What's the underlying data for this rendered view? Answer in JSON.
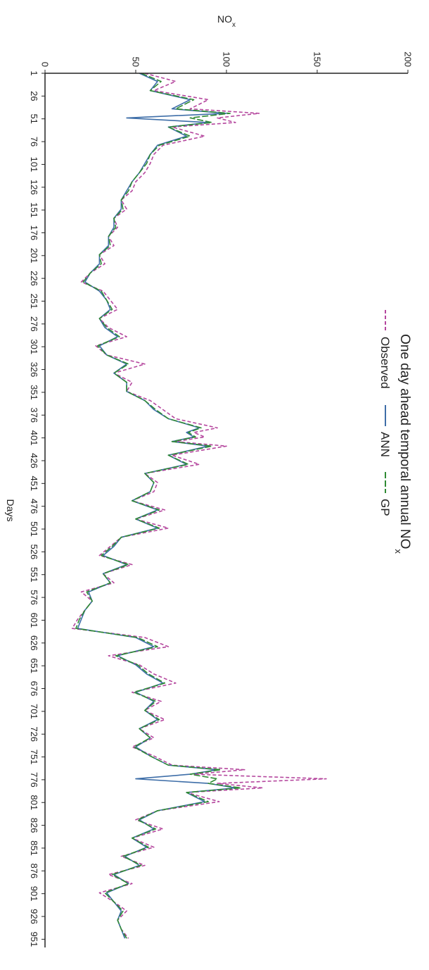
{
  "chart_data": {
    "type": "line",
    "title": "One day ahead temporal annual NO",
    "title_subscript": "x",
    "xlabel": "Days",
    "ylabel": "NO",
    "ylabel_subscript": "x",
    "xlim": [
      1,
      960
    ],
    "ylim": [
      0,
      200
    ],
    "x_ticks": [
      1,
      26,
      51,
      76,
      101,
      126,
      151,
      176,
      201,
      226,
      251,
      276,
      301,
      326,
      351,
      376,
      401,
      426,
      451,
      476,
      501,
      526,
      551,
      576,
      601,
      626,
      651,
      676,
      701,
      726,
      751,
      776,
      801,
      826,
      851,
      876,
      901,
      926,
      951
    ],
    "y_ticks": [
      0,
      50,
      100,
      150,
      200
    ],
    "legend_position": "top",
    "grid": false,
    "x": [
      1,
      10,
      20,
      30,
      40,
      45,
      50,
      55,
      60,
      70,
      80,
      90,
      100,
      110,
      120,
      130,
      140,
      150,
      160,
      170,
      180,
      190,
      200,
      210,
      220,
      230,
      240,
      250,
      260,
      270,
      280,
      290,
      300,
      310,
      320,
      330,
      340,
      350,
      360,
      370,
      380,
      390,
      395,
      400,
      405,
      410,
      420,
      430,
      440,
      450,
      460,
      470,
      480,
      490,
      500,
      510,
      520,
      530,
      540,
      550,
      560,
      570,
      580,
      590,
      600,
      610,
      620,
      630,
      640,
      650,
      660,
      670,
      680,
      690,
      700,
      710,
      720,
      730,
      740,
      750,
      760,
      765,
      770,
      775,
      780,
      785,
      790,
      800,
      810,
      820,
      830,
      840,
      850,
      860,
      870,
      880,
      890,
      900,
      910,
      920,
      930,
      940,
      950
    ],
    "series": [
      {
        "name": "Observed",
        "color": "#b5479e",
        "values": [
          55,
          72,
          60,
          90,
          80,
          118,
          95,
          105,
          70,
          88,
          65,
          60,
          58,
          55,
          50,
          48,
          42,
          45,
          38,
          40,
          35,
          38,
          30,
          33,
          25,
          20,
          32,
          36,
          40,
          30,
          35,
          45,
          28,
          34,
          55,
          38,
          48,
          45,
          58,
          65,
          72,
          95,
          82,
          88,
          72,
          100,
          70,
          85,
          55,
          62,
          60,
          48,
          66,
          50,
          68,
          42,
          36,
          30,
          48,
          32,
          38,
          20,
          26,
          22,
          18,
          15,
          55,
          68,
          35,
          52,
          60,
          72,
          48,
          64,
          55,
          66,
          52,
          60,
          48,
          60,
          70,
          110,
          82,
          155,
          95,
          120,
          78,
          96,
          62,
          50,
          65,
          48,
          60,
          42,
          55,
          35,
          48,
          30,
          38,
          45,
          40,
          42,
          46
        ]
      },
      {
        "name": "ANN",
        "color": "#3e6ea8",
        "values": [
          52,
          62,
          58,
          80,
          70,
          100,
          45,
          90,
          68,
          78,
          62,
          58,
          55,
          52,
          48,
          45,
          42,
          42,
          38,
          38,
          35,
          35,
          30,
          30,
          25,
          22,
          30,
          34,
          36,
          30,
          33,
          40,
          30,
          34,
          45,
          38,
          45,
          45,
          55,
          60,
          68,
          85,
          78,
          82,
          70,
          90,
          68,
          78,
          55,
          60,
          58,
          48,
          62,
          50,
          62,
          42,
          38,
          32,
          45,
          32,
          36,
          24,
          26,
          22,
          20,
          18,
          50,
          60,
          40,
          50,
          56,
          65,
          50,
          60,
          55,
          62,
          52,
          58,
          50,
          58,
          68,
          95,
          80,
          50,
          90,
          105,
          78,
          88,
          62,
          52,
          60,
          48,
          56,
          44,
          52,
          38,
          46,
          34,
          38,
          42,
          40,
          42,
          44
        ]
      },
      {
        "name": "GP",
        "color": "#2f8a34",
        "values": [
          53,
          64,
          58,
          82,
          72,
          102,
          80,
          92,
          68,
          80,
          63,
          58,
          56,
          52,
          48,
          46,
          42,
          43,
          38,
          39,
          35,
          36,
          30,
          31,
          25,
          21,
          31,
          34,
          37,
          30,
          34,
          41,
          29,
          34,
          46,
          38,
          45,
          45,
          55,
          61,
          68,
          86,
          79,
          83,
          70,
          92,
          68,
          79,
          55,
          60,
          58,
          48,
          63,
          50,
          63,
          42,
          37,
          31,
          46,
          32,
          36,
          23,
          26,
          22,
          19,
          17,
          51,
          62,
          39,
          51,
          57,
          66,
          49,
          61,
          55,
          63,
          52,
          58,
          49,
          58,
          68,
          97,
          80,
          95,
          90,
          108,
          78,
          90,
          62,
          51,
          61,
          48,
          57,
          43,
          53,
          37,
          46,
          33,
          38,
          43,
          40,
          42,
          45
        ]
      }
    ]
  }
}
